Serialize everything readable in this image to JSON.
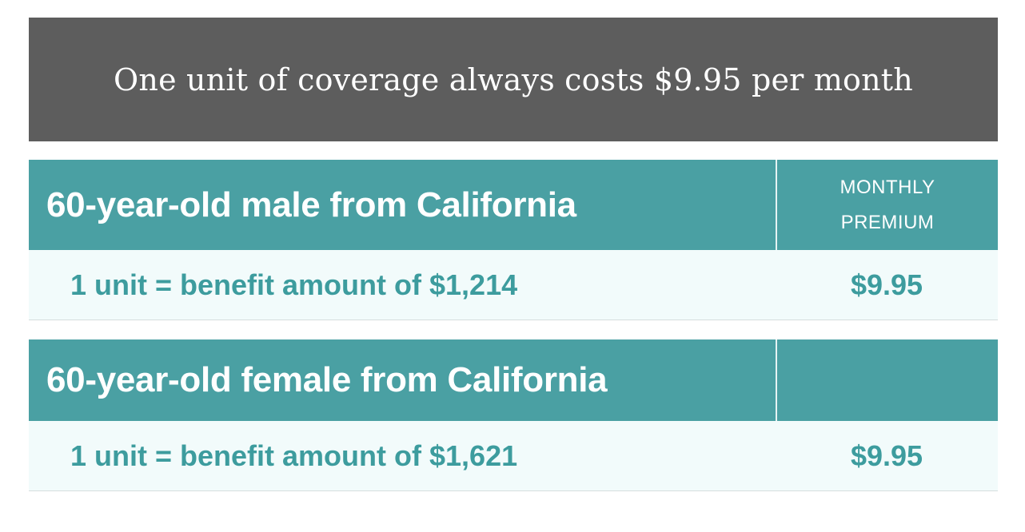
{
  "banner": {
    "title": "One unit of coverage always costs $9.95 per month"
  },
  "sections": [
    {
      "heading": "60-year-old male from California",
      "column_header_line1": "MONTHLY",
      "column_header_line2": "PREMIUM",
      "row": {
        "description": "1 unit = benefit amount of $1,214",
        "premium": "$9.95"
      }
    },
    {
      "heading": "60-year-old female from California",
      "row": {
        "description": "1 unit = benefit amount of $1,621",
        "premium": "$9.95"
      }
    }
  ],
  "colors": {
    "banner_bg": "#5d5d5d",
    "header_teal": "#4aa0a3",
    "row_bg": "#f2fbfb",
    "text_teal": "#3d9c9e"
  }
}
